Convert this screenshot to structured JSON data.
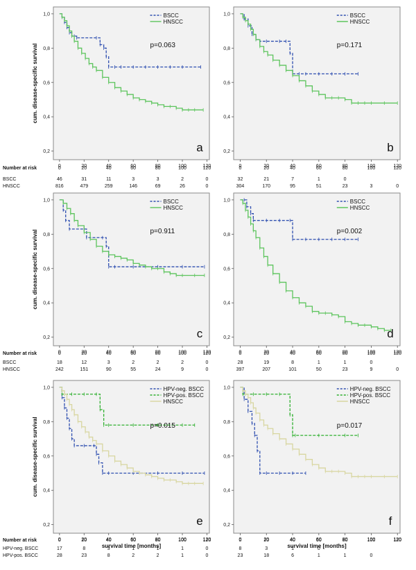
{
  "colors": {
    "bscc": "#2f4fb0",
    "hnscc": "#5cc45c",
    "hpv_neg": "#2f4fb0",
    "hpv_pos": "#2fb02f",
    "hnscc_ef": "#d8d6a0",
    "panel_bg": "#f2f2f2",
    "panel_border": "#8a8a8a"
  },
  "y_axis_label": "cum. disease-specific survival",
  "x_axis_label": "survival time [months]",
  "number_at_risk_label": "Number at risk",
  "chart_data": [
    {
      "panel": "a",
      "type": "line",
      "p_value": "p=0.063",
      "xlim": [
        -5,
        122
      ],
      "ylim": [
        0.15,
        1.04
      ],
      "x_ticks": [
        "0",
        "20",
        "40",
        "60",
        "80",
        "100",
        "120"
      ],
      "y_ticks": [
        "0,2",
        "0,4",
        "0,6",
        "0,8",
        "1,0"
      ],
      "series": [
        {
          "name": "BSCC",
          "color": "#2f4fb0",
          "dash": true,
          "x": [
            0,
            2,
            4,
            6,
            8,
            10,
            12,
            14,
            30,
            33,
            36,
            38,
            40,
            45,
            50,
            60,
            70,
            80,
            90,
            100,
            115
          ],
          "y": [
            1.0,
            0.98,
            0.95,
            0.92,
            0.89,
            0.87,
            0.87,
            0.86,
            0.86,
            0.82,
            0.8,
            0.75,
            0.69,
            0.69,
            0.69,
            0.69,
            0.69,
            0.69,
            0.69,
            0.69,
            0.69
          ]
        },
        {
          "name": "HNSCC",
          "color": "#5cc45c",
          "dash": false,
          "x": [
            0,
            2,
            4,
            6,
            8,
            10,
            12,
            15,
            18,
            21,
            24,
            27,
            30,
            35,
            40,
            45,
            50,
            55,
            60,
            65,
            70,
            75,
            80,
            85,
            90,
            95,
            100,
            105,
            110,
            117
          ],
          "y": [
            1.0,
            0.98,
            0.96,
            0.93,
            0.9,
            0.87,
            0.84,
            0.8,
            0.77,
            0.74,
            0.71,
            0.69,
            0.67,
            0.63,
            0.6,
            0.57,
            0.55,
            0.53,
            0.51,
            0.5,
            0.49,
            0.48,
            0.47,
            0.46,
            0.46,
            0.45,
            0.44,
            0.44,
            0.44,
            0.44
          ]
        }
      ],
      "risk_x": [
        "0",
        "20",
        "40",
        "60",
        "80",
        "100",
        "120"
      ],
      "risk_rows": [
        {
          "label": "BSCC",
          "values": [
            "46",
            "31",
            "11",
            "3",
            "3",
            "2",
            "0"
          ]
        },
        {
          "label": "HNSCC",
          "values": [
            "816",
            "479",
            "259",
            "146",
            "69",
            "26",
            "0"
          ]
        }
      ]
    },
    {
      "panel": "b",
      "type": "line",
      "p_value": "p=0.171",
      "xlim": [
        -5,
        122
      ],
      "ylim": [
        0.15,
        1.04
      ],
      "x_ticks": [
        "0",
        "20",
        "40",
        "60",
        "80",
        "100",
        "120"
      ],
      "y_ticks": [
        "0,2",
        "0,4",
        "0,6",
        "0,8",
        "1,0"
      ],
      "series": [
        {
          "name": "BSCC",
          "color": "#2f4fb0",
          "dash": true,
          "x": [
            0,
            3,
            6,
            9,
            12,
            15,
            20,
            30,
            35,
            38,
            40,
            45,
            50,
            60,
            70,
            80,
            90
          ],
          "y": [
            1.0,
            0.97,
            0.93,
            0.88,
            0.85,
            0.84,
            0.84,
            0.84,
            0.84,
            0.77,
            0.65,
            0.65,
            0.65,
            0.65,
            0.65,
            0.65,
            0.65
          ]
        },
        {
          "name": "HNSCC",
          "color": "#5cc45c",
          "dash": false,
          "x": [
            0,
            2,
            4,
            6,
            8,
            10,
            12,
            15,
            18,
            21,
            25,
            30,
            35,
            40,
            45,
            50,
            55,
            60,
            65,
            70,
            75,
            80,
            85,
            90,
            95,
            100,
            110,
            120
          ],
          "y": [
            1.0,
            0.98,
            0.96,
            0.94,
            0.91,
            0.88,
            0.85,
            0.81,
            0.78,
            0.76,
            0.73,
            0.7,
            0.67,
            0.64,
            0.61,
            0.58,
            0.55,
            0.53,
            0.51,
            0.51,
            0.51,
            0.5,
            0.48,
            0.48,
            0.48,
            0.48,
            0.48,
            0.48
          ]
        }
      ],
      "risk_x": [
        "0",
        "20",
        "40",
        "60",
        "80",
        "100",
        "120"
      ],
      "risk_rows": [
        {
          "label": "",
          "values": [
            "32",
            "21",
            "7",
            "1",
            "0",
            "",
            ""
          ]
        },
        {
          "label": "",
          "values": [
            "304",
            "170",
            "95",
            "51",
            "23",
            "3",
            "0"
          ]
        }
      ]
    },
    {
      "panel": "c",
      "type": "line",
      "p_value": "p=0.911",
      "xlim": [
        -5,
        122
      ],
      "ylim": [
        0.15,
        1.04
      ],
      "x_ticks": [
        "0",
        "20",
        "40",
        "60",
        "80",
        "100",
        "120"
      ],
      "y_ticks": [
        "0,2",
        "0,4",
        "0,6",
        "0,8",
        "1,0"
      ],
      "series": [
        {
          "name": "BSCC",
          "color": "#2f4fb0",
          "dash": true,
          "x": [
            0,
            3,
            5,
            8,
            20,
            22,
            35,
            38,
            40,
            45,
            60,
            80,
            100,
            118
          ],
          "y": [
            1.0,
            0.94,
            0.88,
            0.83,
            0.83,
            0.78,
            0.78,
            0.73,
            0.61,
            0.61,
            0.61,
            0.61,
            0.61,
            0.61
          ]
        },
        {
          "name": "HNSCC",
          "color": "#5cc45c",
          "dash": false,
          "x": [
            0,
            3,
            6,
            9,
            12,
            15,
            20,
            25,
            30,
            35,
            40,
            45,
            50,
            55,
            60,
            65,
            70,
            75,
            80,
            85,
            90,
            95,
            100,
            110,
            118
          ],
          "y": [
            1.0,
            0.98,
            0.95,
            0.92,
            0.88,
            0.85,
            0.81,
            0.77,
            0.73,
            0.7,
            0.68,
            0.67,
            0.66,
            0.65,
            0.63,
            0.62,
            0.61,
            0.6,
            0.6,
            0.58,
            0.57,
            0.56,
            0.56,
            0.56,
            0.56
          ]
        }
      ],
      "risk_x": [
        "0",
        "20",
        "40",
        "60",
        "80",
        "100",
        "120"
      ],
      "risk_rows": [
        {
          "label": "BSCC",
          "values": [
            "18",
            "12",
            "3",
            "2",
            "2",
            "2",
            "0"
          ]
        },
        {
          "label": "HNSCC",
          "values": [
            "242",
            "151",
            "90",
            "55",
            "24",
            "9",
            "0"
          ]
        }
      ]
    },
    {
      "panel": "d",
      "type": "line",
      "p_value": "p=0.002",
      "xlim": [
        -5,
        122
      ],
      "ylim": [
        0.15,
        1.04
      ],
      "x_ticks": [
        "0",
        "20",
        "40",
        "60",
        "80",
        "100",
        "120"
      ],
      "y_ticks": [
        "0,2",
        "0,4",
        "0,6",
        "0,8",
        "1,0"
      ],
      "series": [
        {
          "name": "BSCC",
          "color": "#2f4fb0",
          "dash": true,
          "x": [
            0,
            3,
            5,
            8,
            10,
            20,
            30,
            38,
            40,
            50,
            60,
            70,
            80,
            90
          ],
          "y": [
            1.0,
            1.0,
            0.96,
            0.92,
            0.88,
            0.88,
            0.88,
            0.88,
            0.77,
            0.77,
            0.77,
            0.77,
            0.77,
            0.77
          ]
        },
        {
          "name": "HNSCC",
          "color": "#5cc45c",
          "dash": false,
          "x": [
            0,
            2,
            4,
            6,
            8,
            10,
            12,
            15,
            18,
            21,
            25,
            30,
            35,
            40,
            45,
            50,
            55,
            60,
            65,
            70,
            75,
            80,
            85,
            90,
            95,
            100,
            105,
            110,
            115
          ],
          "y": [
            1.0,
            0.98,
            0.94,
            0.9,
            0.86,
            0.82,
            0.78,
            0.72,
            0.67,
            0.62,
            0.57,
            0.52,
            0.47,
            0.43,
            0.4,
            0.38,
            0.35,
            0.34,
            0.34,
            0.33,
            0.32,
            0.29,
            0.28,
            0.27,
            0.27,
            0.26,
            0.25,
            0.24,
            0.24
          ]
        }
      ],
      "risk_x": [
        "0",
        "20",
        "40",
        "60",
        "80",
        "100",
        "120"
      ],
      "risk_rows": [
        {
          "label": "",
          "values": [
            "28",
            "19",
            "8",
            "1",
            "1",
            "0",
            ""
          ]
        },
        {
          "label": "",
          "values": [
            "397",
            "207",
            "101",
            "50",
            "23",
            "9",
            "0"
          ]
        }
      ]
    },
    {
      "panel": "e",
      "type": "line",
      "p_value": "p=0.015",
      "xlim": [
        -5,
        122
      ],
      "ylim": [
        0.15,
        1.04
      ],
      "x_ticks": [
        "0",
        "20",
        "40",
        "60",
        "80",
        "100",
        "120"
      ],
      "y_ticks": [
        "0,2",
        "0,4",
        "0,6",
        "0,8",
        "1,0"
      ],
      "series": [
        {
          "name": "HPV-neg. BSCC",
          "color": "#2f4fb0",
          "dash": true,
          "x": [
            0,
            2,
            4,
            6,
            8,
            10,
            12,
            20,
            28,
            30,
            32,
            35,
            40,
            60,
            80,
            100,
            118
          ],
          "y": [
            1.0,
            0.94,
            0.88,
            0.82,
            0.76,
            0.7,
            0.66,
            0.66,
            0.66,
            0.61,
            0.56,
            0.5,
            0.5,
            0.5,
            0.5,
            0.5,
            0.5
          ]
        },
        {
          "name": "HPV-pos. BSCC",
          "color": "#2fb02f",
          "dash": true,
          "x": [
            0,
            2,
            4,
            10,
            20,
            30,
            33,
            36,
            40,
            60,
            80,
            100,
            110
          ],
          "y": [
            1.0,
            0.96,
            0.96,
            0.96,
            0.96,
            0.96,
            0.87,
            0.78,
            0.78,
            0.78,
            0.78,
            0.78,
            0.78
          ]
        },
        {
          "name": "HNSCC",
          "color": "#d8d6a0",
          "dash": false,
          "x": [
            0,
            2,
            4,
            6,
            8,
            10,
            12,
            15,
            18,
            21,
            24,
            27,
            30,
            35,
            40,
            45,
            50,
            55,
            60,
            65,
            70,
            75,
            80,
            85,
            90,
            95,
            100,
            105,
            110,
            117
          ],
          "y": [
            1.0,
            0.98,
            0.96,
            0.93,
            0.9,
            0.87,
            0.84,
            0.8,
            0.77,
            0.74,
            0.71,
            0.69,
            0.67,
            0.63,
            0.6,
            0.57,
            0.55,
            0.53,
            0.51,
            0.5,
            0.49,
            0.48,
            0.47,
            0.46,
            0.46,
            0.45,
            0.44,
            0.44,
            0.44,
            0.44
          ]
        }
      ],
      "risk_x": [
        "0",
        "20",
        "40",
        "60",
        "80",
        "100",
        "120"
      ],
      "risk_rows": [
        {
          "label": "HPV-neg. BSCC",
          "values": [
            "17",
            "8",
            "3",
            "1",
            "1",
            "1",
            "0"
          ]
        },
        {
          "label": "HPV-pos. BSCC",
          "values": [
            "28",
            "23",
            "8",
            "2",
            "2",
            "1",
            "0"
          ]
        }
      ]
    },
    {
      "panel": "f",
      "type": "line",
      "p_value": "p=0.017",
      "xlim": [
        -5,
        122
      ],
      "ylim": [
        0.15,
        1.04
      ],
      "x_ticks": [
        "0",
        "20",
        "40",
        "60",
        "80",
        "100",
        "120"
      ],
      "y_ticks": [
        "0,2",
        "0,4",
        "0,6",
        "0,8",
        "1,0"
      ],
      "series": [
        {
          "name": "HPV-neg. BSCC",
          "color": "#2f4fb0",
          "dash": true,
          "x": [
            0,
            3,
            6,
            9,
            11,
            13,
            15,
            20,
            30,
            40,
            50
          ],
          "y": [
            1.0,
            0.93,
            0.86,
            0.79,
            0.72,
            0.63,
            0.5,
            0.5,
            0.5,
            0.5,
            0.5
          ]
        },
        {
          "name": "HPV-pos. BSCC",
          "color": "#2fb02f",
          "dash": true,
          "x": [
            0,
            2,
            4,
            10,
            20,
            30,
            38,
            40,
            42,
            60,
            80,
            90
          ],
          "y": [
            1.0,
            0.96,
            0.96,
            0.96,
            0.96,
            0.96,
            0.84,
            0.72,
            0.72,
            0.72,
            0.72,
            0.72
          ]
        },
        {
          "name": "HNSCC",
          "color": "#d8d6a0",
          "dash": false,
          "x": [
            0,
            2,
            4,
            6,
            8,
            10,
            12,
            15,
            18,
            21,
            25,
            30,
            35,
            40,
            45,
            50,
            55,
            60,
            65,
            70,
            75,
            80,
            85,
            90,
            95,
            100,
            110,
            120
          ],
          "y": [
            1.0,
            0.98,
            0.96,
            0.94,
            0.91,
            0.88,
            0.85,
            0.81,
            0.78,
            0.76,
            0.73,
            0.7,
            0.67,
            0.64,
            0.61,
            0.58,
            0.55,
            0.53,
            0.51,
            0.51,
            0.51,
            0.5,
            0.48,
            0.48,
            0.48,
            0.48,
            0.48,
            0.48
          ]
        }
      ],
      "risk_x": [
        "0",
        "20",
        "40",
        "60",
        "80",
        "100",
        "120"
      ],
      "risk_rows": [
        {
          "label": "",
          "values": [
            "8",
            "3",
            "1",
            "0",
            "",
            "",
            ""
          ]
        },
        {
          "label": "",
          "values": [
            "23",
            "18",
            "6",
            "1",
            "1",
            "0",
            ""
          ]
        }
      ]
    }
  ]
}
